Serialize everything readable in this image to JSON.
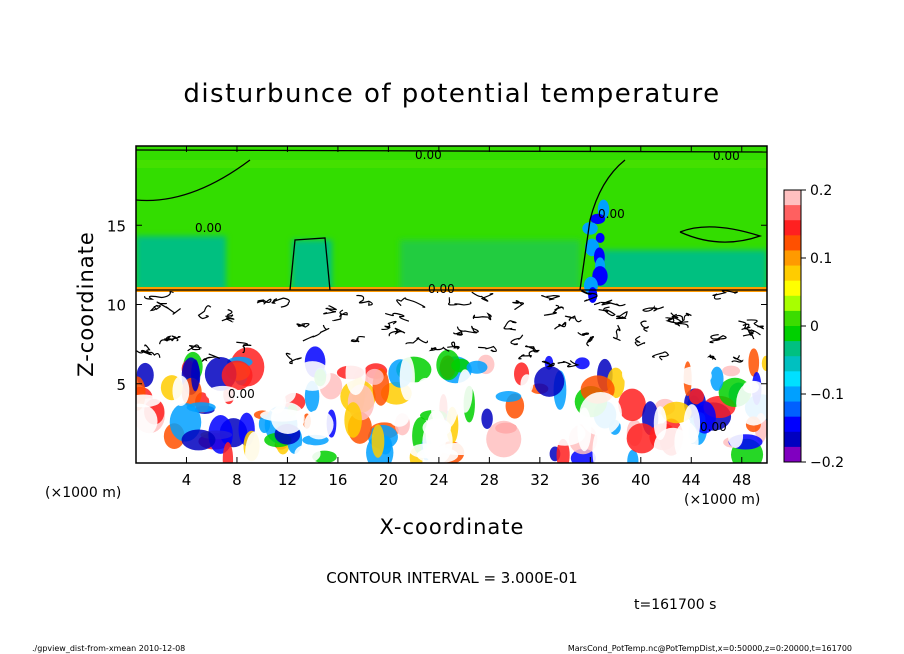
{
  "chart_data": {
    "type": "heatmap",
    "title": "disturbunce of potential temperature",
    "xlabel": "X-coordinate",
    "ylabel": "Z-coordinate",
    "x_unit": "(×1000 m)",
    "z_unit": "(×1000 m)",
    "xlim": [
      0,
      50
    ],
    "ylim": [
      0,
      20
    ],
    "x_ticks": [
      4,
      8,
      12,
      16,
      20,
      24,
      28,
      32,
      36,
      40,
      44,
      48
    ],
    "y_ticks": [
      5,
      10,
      15
    ],
    "colorbar": {
      "range": [
        -0.2,
        0.2
      ],
      "ticks": [
        "0.2",
        "0.1",
        "0",
        "−0.1",
        "−0.2"
      ],
      "tick_values": [
        0.2,
        0.1,
        0,
        -0.1,
        -0.2
      ],
      "colors": [
        "#ffc0c0",
        "#ff6060",
        "#ff2020",
        "#ff5000",
        "#ff9a00",
        "#ffcc00",
        "#ffff00",
        "#a8ff00",
        "#3cdc00",
        "#00d000",
        "#00c080",
        "#00c0c0",
        "#00e0ff",
        "#00a0ff",
        "#0060ff",
        "#0000ff",
        "#0000c0",
        "#8000c0"
      ]
    },
    "contour_labels": [
      "0.00",
      "0.00",
      "0.00",
      "0.00",
      "0.00",
      "0.00",
      "0.00"
    ],
    "contour_interval": "CONTOUR INTERVAL = 3.000E-01",
    "time": "t=161700 s"
  },
  "footer": {
    "left": "./gpview_dist-from-xmean  2010-12-08",
    "right": "MarsCond_PotTemp.nc@PotTempDist,x=0:50000,z=0:20000,t=161700"
  },
  "colors": {
    "upper_green": "#33dd00",
    "upper_teal": "#00c080",
    "warm": "#ff2020",
    "cold": "#0000ff"
  }
}
